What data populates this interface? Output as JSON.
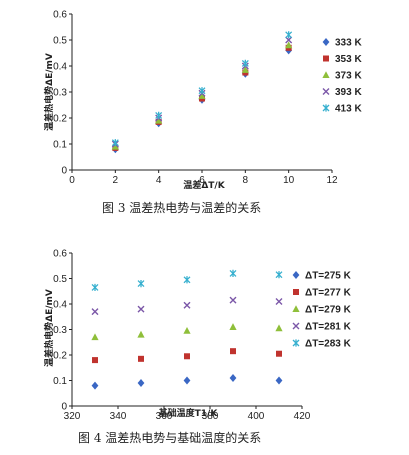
{
  "colors": {
    "s1": "#3a67c4",
    "s2": "#c0332e",
    "s3": "#8fbf3a",
    "s4": "#7b57a8",
    "s5": "#37b0cf"
  },
  "chart_data": [
    {
      "type": "scatter",
      "title": "",
      "caption": "图 3   温差热电势与温差的关系",
      "xlabel": "温差ΔT/K",
      "ylabel": "温差热电势ΔE/mV",
      "xlim": [
        0,
        12
      ],
      "ylim": [
        0,
        0.6
      ],
      "xticks": [
        0,
        2,
        4,
        6,
        8,
        10,
        12
      ],
      "yticks": [
        0,
        0.1,
        0.2,
        0.3,
        0.4,
        0.5,
        0.6
      ],
      "x": [
        2,
        4,
        6,
        8,
        10
      ],
      "legend_position": "right",
      "series": [
        {
          "name": "333 K",
          "marker": "diamond",
          "values": [
            0.08,
            0.18,
            0.27,
            0.37,
            0.46
          ]
        },
        {
          "name": "353 K",
          "marker": "square",
          "values": [
            0.085,
            0.185,
            0.275,
            0.375,
            0.47
          ]
        },
        {
          "name": "373 K",
          "marker": "triangle",
          "values": [
            0.09,
            0.19,
            0.285,
            0.385,
            0.48
          ]
        },
        {
          "name": "393 K",
          "marker": "x",
          "values": [
            0.1,
            0.2,
            0.295,
            0.4,
            0.5
          ]
        },
        {
          "name": "413 K",
          "marker": "star",
          "values": [
            0.105,
            0.21,
            0.305,
            0.41,
            0.52
          ]
        }
      ]
    },
    {
      "type": "scatter",
      "title": "",
      "caption": "图 4   温差热电势与基础温度的关系",
      "xlabel": "基础温度T1/K",
      "ylabel": "温差热电势ΔE/mV",
      "xlim": [
        320,
        420
      ],
      "ylim": [
        0,
        0.6
      ],
      "xticks": [
        320,
        340,
        360,
        380,
        400,
        420
      ],
      "yticks": [
        0,
        0.1,
        0.2,
        0.3,
        0.4,
        0.5,
        0.6
      ],
      "x": [
        330,
        350,
        370,
        390,
        410
      ],
      "legend_position": "right",
      "series": [
        {
          "name": "ΔT=275 K",
          "marker": "diamond",
          "values": [
            0.08,
            0.09,
            0.1,
            0.11,
            0.1
          ]
        },
        {
          "name": "ΔT=277 K",
          "marker": "square",
          "values": [
            0.18,
            0.185,
            0.195,
            0.215,
            0.205
          ]
        },
        {
          "name": "ΔT=279 K",
          "marker": "triangle",
          "values": [
            0.27,
            0.28,
            0.295,
            0.31,
            0.305
          ]
        },
        {
          "name": "ΔT=281 K",
          "marker": "x",
          "values": [
            0.37,
            0.38,
            0.395,
            0.415,
            0.41
          ]
        },
        {
          "name": "ΔT=283 K",
          "marker": "star",
          "values": [
            0.465,
            0.48,
            0.495,
            0.52,
            0.515
          ]
        }
      ]
    }
  ]
}
